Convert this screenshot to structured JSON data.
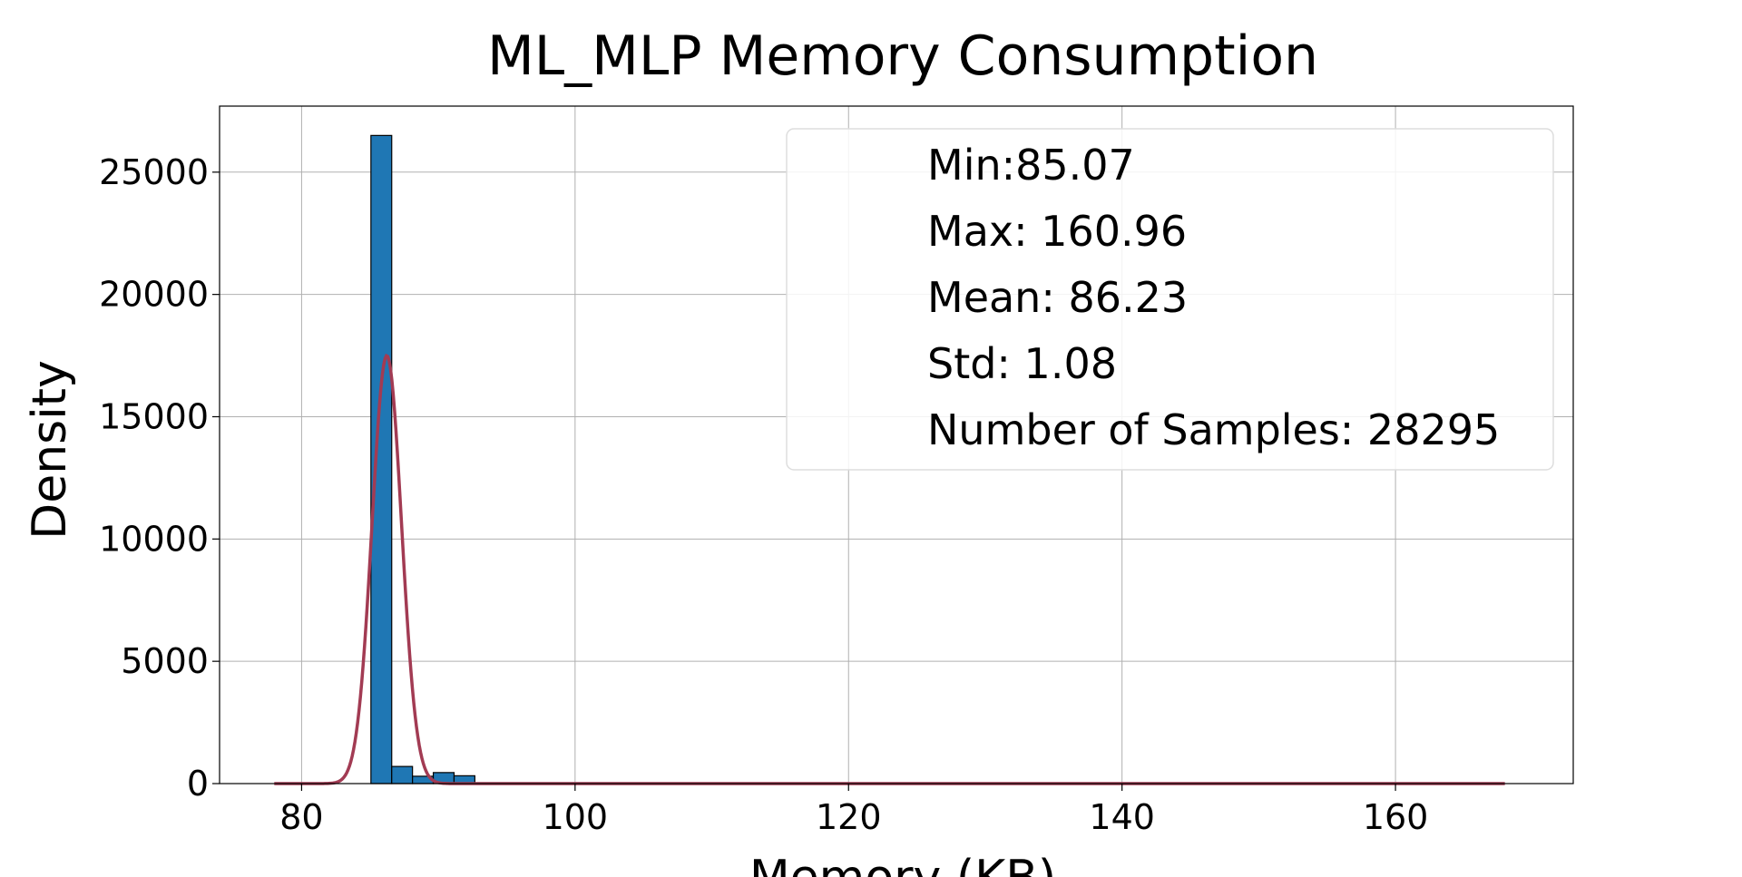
{
  "chart_data": {
    "type": "bar",
    "title": "ML_MLP Memory Consumption",
    "xlabel": "Memory (KB)",
    "ylabel": "Density",
    "xlim": [
      74,
      173
    ],
    "ylim": [
      0,
      27700
    ],
    "x_ticks": [
      80,
      100,
      120,
      140,
      160
    ],
    "y_ticks": [
      0,
      5000,
      10000,
      15000,
      20000,
      25000
    ],
    "grid": true,
    "bin_width": 1.52,
    "bins": [
      {
        "x0": 85.07,
        "value": 26500
      },
      {
        "x0": 86.59,
        "value": 700
      },
      {
        "x0": 88.11,
        "value": 300
      },
      {
        "x0": 89.63,
        "value": 450
      },
      {
        "x0": 91.15,
        "value": 320
      }
    ],
    "curve": {
      "type": "gaussian",
      "mean": 86.23,
      "peak": 17500,
      "sigma": 1.08,
      "x_range": [
        78,
        168
      ]
    },
    "stats_box": {
      "position": "top-right",
      "lines": [
        "Min:85.07",
        "Max: 160.96",
        "Mean: 86.23",
        "Std: 1.08",
        "Number of Samples: 28295"
      ]
    },
    "colors": {
      "bar_fill": "#1f77b4",
      "bar_edge": "#000000",
      "curve": "#a23b53",
      "grid": "#b0b0b0"
    }
  }
}
